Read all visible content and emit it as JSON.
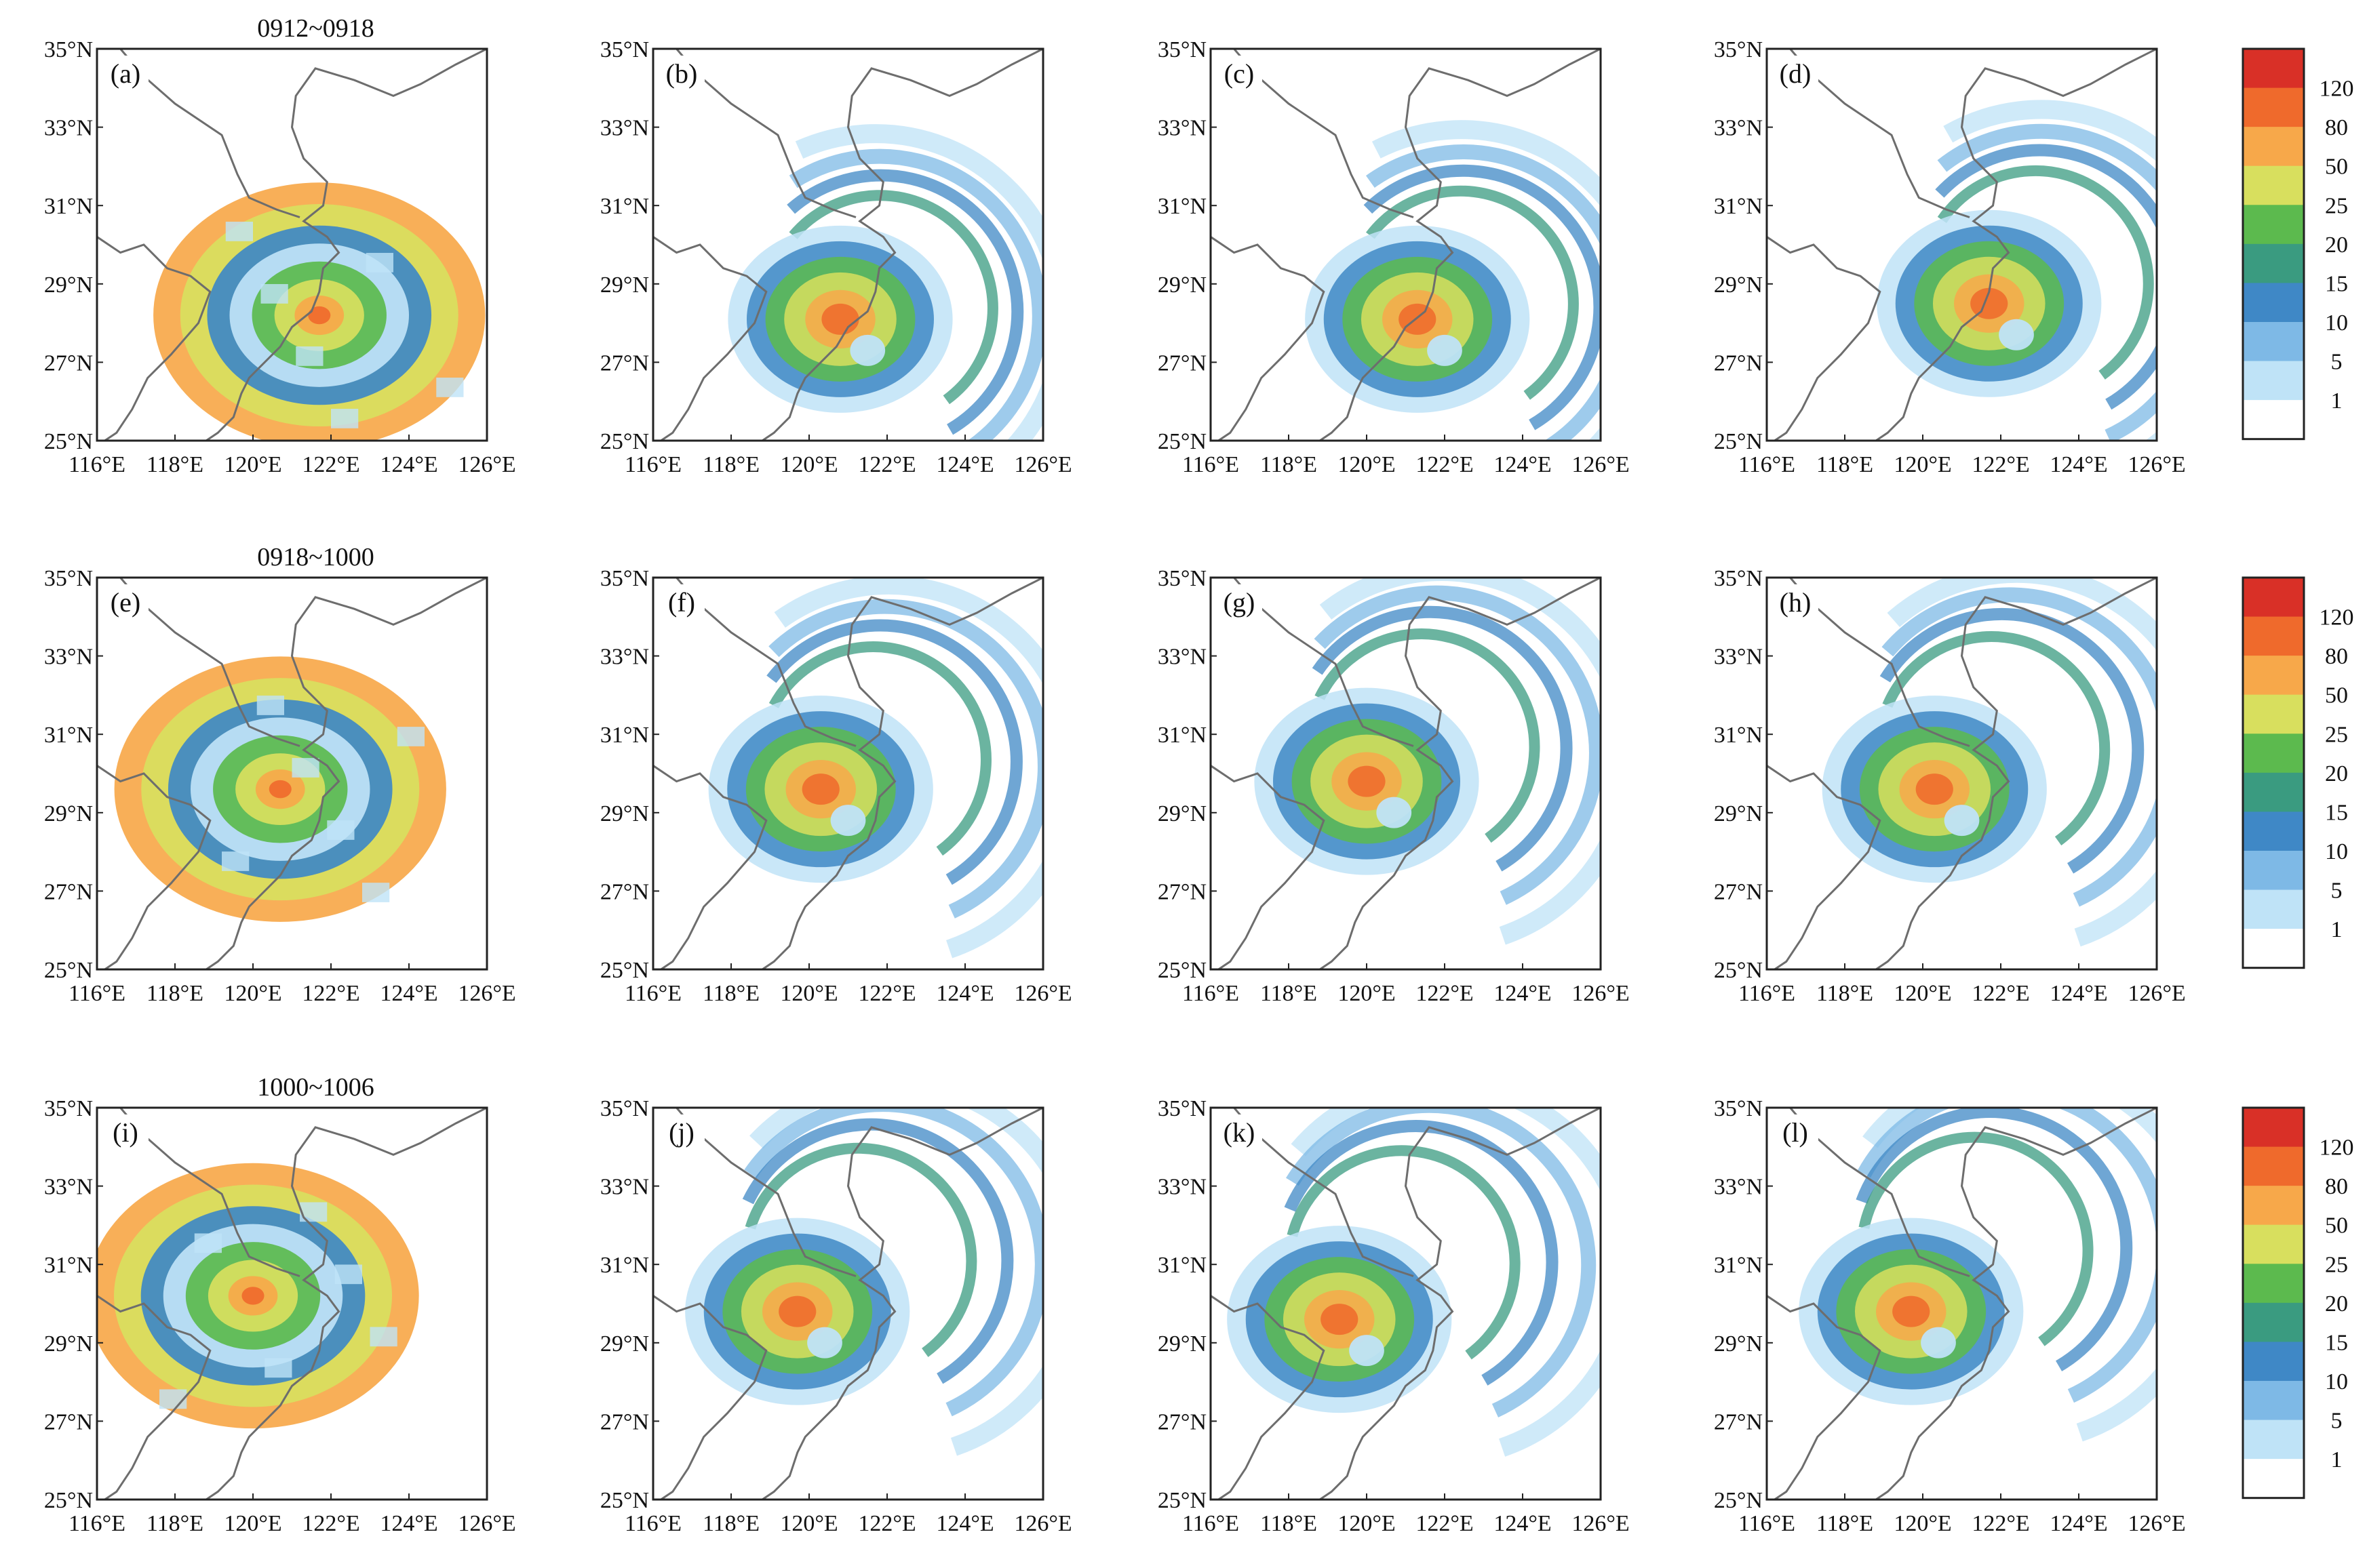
{
  "figure": {
    "row_titles": [
      "0912~0918",
      "0918~1000",
      "1000~1006"
    ],
    "panel_labels": [
      [
        "(a)",
        "(b)",
        "(c)",
        "(d)"
      ],
      [
        "(e)",
        "(f)",
        "(g)",
        "(h)"
      ],
      [
        "(i)",
        "(j)",
        "(k)",
        "(l)"
      ]
    ],
    "lat_ticks": [
      "35°N",
      "33°N",
      "31°N",
      "29°N",
      "27°N",
      "25°N"
    ],
    "lon_ticks": [
      "116°E",
      "118°E",
      "120°E",
      "122°E",
      "124°E",
      "126°E"
    ],
    "colorbar": {
      "labels": [
        "120",
        "80",
        "50",
        "25",
        "20",
        "15",
        "10",
        "5",
        "1"
      ],
      "colors": [
        "#d93027",
        "#ef6a2c",
        "#f7a84a",
        "#d8df5e",
        "#5cba4e",
        "#3a9b80",
        "#3f88c6",
        "#7eb9e6",
        "#bfe3f7",
        "#ffffff"
      ]
    },
    "map_extent": {
      "lon": [
        116,
        126
      ],
      "lat": [
        25,
        35
      ]
    }
  },
  "chart_data": {
    "type": "heatmap",
    "description_units": "accumulated rainfall (mm), color classes",
    "extent": {
      "lon": [
        116,
        126
      ],
      "lat": [
        25,
        35
      ]
    },
    "levels": [
      1,
      5,
      10,
      15,
      20,
      25,
      50,
      80,
      120
    ],
    "rows": [
      {
        "period": "0912~0918",
        "panels": [
          "(a)",
          "(b)",
          "(c)",
          "(d)"
        ],
        "storm_center": [
          [
            122.0,
            28.2
          ],
          [
            121.3,
            27.9
          ],
          [
            121.8,
            27.9
          ],
          [
            122.2,
            28.3
          ]
        ]
      },
      {
        "period": "0918~1000",
        "panels": [
          "(e)",
          "(f)",
          "(g)",
          "(h)"
        ],
        "storm_center": [
          [
            121.0,
            29.6
          ],
          [
            120.8,
            29.4
          ],
          [
            120.5,
            29.6
          ],
          [
            120.8,
            29.4
          ]
        ]
      },
      {
        "period": "1000~1006",
        "panels": [
          "(i)",
          "(j)",
          "(k)",
          "(l)"
        ],
        "storm_center": [
          [
            120.3,
            30.2
          ],
          [
            120.2,
            29.6
          ],
          [
            119.8,
            29.4
          ],
          [
            120.2,
            29.6
          ]
        ]
      }
    ]
  }
}
